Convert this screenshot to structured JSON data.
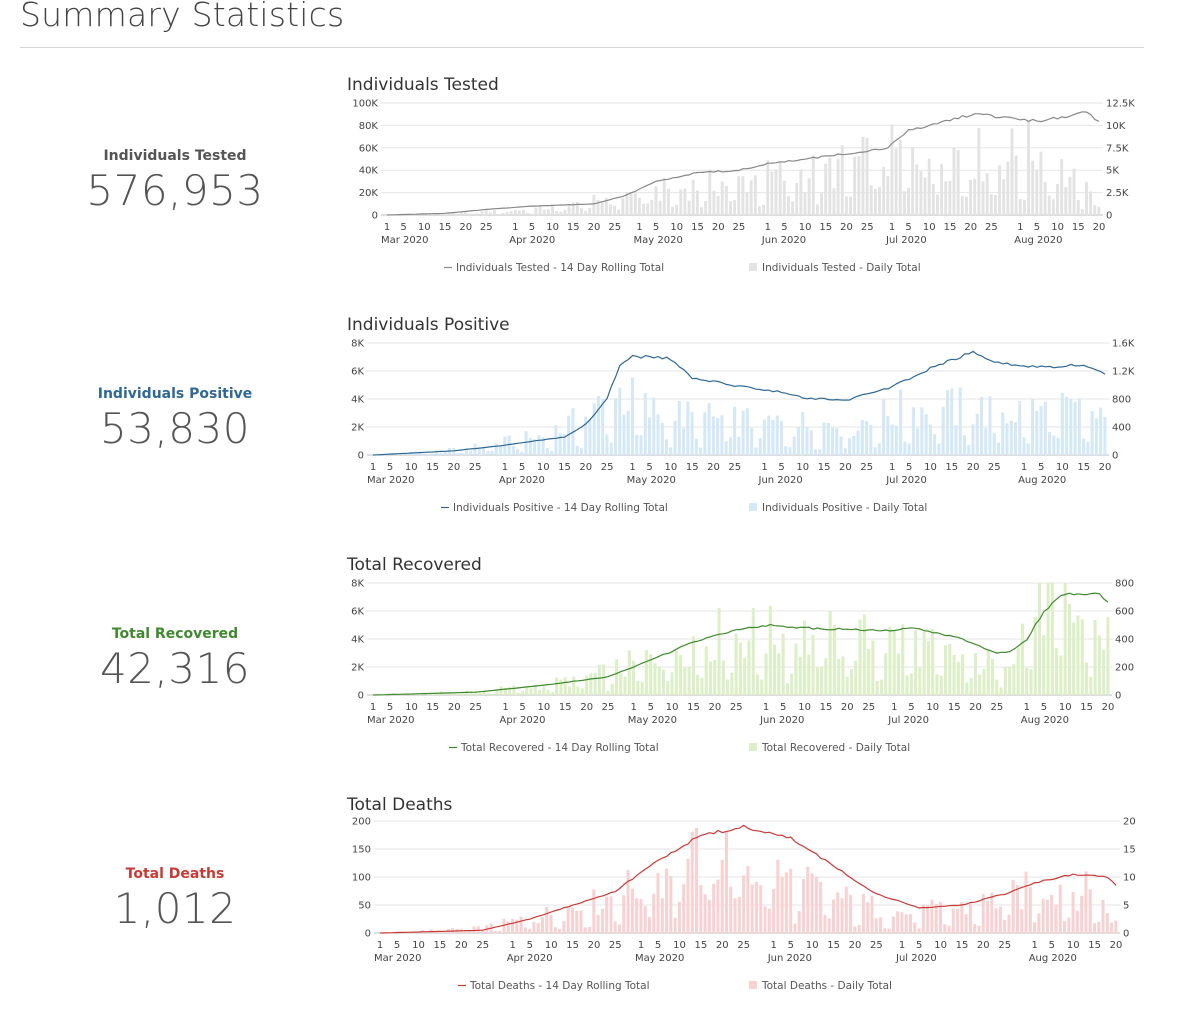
{
  "page": {
    "title": "Summary Statistics"
  },
  "stats": [
    {
      "key": "tested",
      "label": "Individuals Tested",
      "value": "576,953",
      "label_color": "#555555"
    },
    {
      "key": "positive",
      "label": "Individuals Positive",
      "value": "53,830",
      "label_color": "#2f6896"
    },
    {
      "key": "recovered",
      "label": "Total Recovered",
      "value": "42,316",
      "label_color": "#3f8a2e"
    },
    {
      "key": "deaths",
      "label": "Total Deaths",
      "value": "1,012",
      "label_color": "#c83a36"
    }
  ],
  "chart_data": [
    {
      "type": "bar+line",
      "title": "Individuals Tested",
      "x_start": "2020-03-01",
      "x_end": "2020-08-20",
      "left_axis": {
        "ticks": [
          "0",
          "20K",
          "40K",
          "60K",
          "80K",
          "100K"
        ],
        "values": [
          0,
          20000,
          40000,
          60000,
          80000,
          100000
        ]
      },
      "right_axis": {
        "ticks": [
          "0",
          "2.5K",
          "5K",
          "7.5K",
          "10K",
          "12.5K"
        ],
        "values": [
          0,
          2500,
          5000,
          7500,
          10000,
          12500
        ]
      },
      "x_day_labels": [
        "1",
        "5",
        "10",
        "15",
        "20",
        "25",
        "1",
        "5",
        "10",
        "15",
        "20",
        "25",
        "1",
        "5",
        "10",
        "15",
        "20",
        "25",
        "1",
        "5",
        "10",
        "15",
        "20",
        "25",
        "1",
        "5",
        "10",
        "15",
        "20",
        "25",
        "1",
        "5",
        "10",
        "15",
        "20"
      ],
      "x_month_labels": [
        "Mar 2020",
        "Apr 2020",
        "May 2020",
        "Jun 2020",
        "Jul 2020",
        "Aug 2020"
      ],
      "legend": [
        "Individuals Tested - 14 Day Rolling Total",
        "Individuals Tested - Daily Total"
      ],
      "colors": {
        "line": "#888888",
        "bar": "#e3e3e3"
      },
      "line_series": {
        "name": "Individuals Tested - 14 Day Rolling Total",
        "points": [
          [
            "2020-03-01",
            0
          ],
          [
            "2020-03-15",
            1500
          ],
          [
            "2020-03-25",
            5000
          ],
          [
            "2020-04-05",
            8000
          ],
          [
            "2020-04-20",
            10000
          ],
          [
            "2020-04-28",
            18000
          ],
          [
            "2020-05-05",
            30000
          ],
          [
            "2020-05-15",
            38000
          ],
          [
            "2020-05-25",
            40000
          ],
          [
            "2020-06-01",
            46000
          ],
          [
            "2020-06-10",
            50000
          ],
          [
            "2020-06-20",
            55000
          ],
          [
            "2020-06-30",
            60000
          ],
          [
            "2020-07-05",
            76000
          ],
          [
            "2020-07-12",
            82000
          ],
          [
            "2020-07-20",
            90000
          ],
          [
            "2020-07-28",
            88000
          ],
          [
            "2020-08-05",
            84000
          ],
          [
            "2020-08-12",
            88000
          ],
          [
            "2020-08-17",
            92000
          ],
          [
            "2020-08-20",
            83000
          ]
        ]
      },
      "bar_series": {
        "name": "Individuals Tested - Daily Total",
        "points": [
          [
            "2020-03-01",
            0
          ],
          [
            "2020-03-20",
            300
          ],
          [
            "2020-04-01",
            600
          ],
          [
            "2020-04-15",
            1200
          ],
          [
            "2020-04-25",
            2400
          ],
          [
            "2020-05-05",
            3000
          ],
          [
            "2020-05-20",
            4000
          ],
          [
            "2020-06-01",
            4800
          ],
          [
            "2020-06-15",
            5600
          ],
          [
            "2020-07-01",
            7600
          ],
          [
            "2020-07-15",
            8200
          ],
          [
            "2020-07-25",
            7200
          ],
          [
            "2020-08-05",
            8200
          ],
          [
            "2020-08-20",
            1500
          ]
        ]
      }
    },
    {
      "type": "bar+line",
      "title": "Individuals Positive",
      "x_start": "2020-03-01",
      "x_end": "2020-08-20",
      "left_axis": {
        "ticks": [
          "0",
          "2K",
          "4K",
          "6K",
          "8K"
        ],
        "values": [
          0,
          2000,
          4000,
          6000,
          8000
        ]
      },
      "right_axis": {
        "ticks": [
          "0",
          "400",
          "800",
          "1.2K",
          "1.6K"
        ],
        "values": [
          0,
          400,
          800,
          1200,
          1600
        ]
      },
      "x_day_labels": [
        "1",
        "5",
        "10",
        "15",
        "20",
        "25",
        "1",
        "5",
        "10",
        "15",
        "20",
        "25",
        "1",
        "5",
        "10",
        "15",
        "20",
        "25",
        "1",
        "5",
        "10",
        "15",
        "20",
        "25",
        "1",
        "5",
        "10",
        "15",
        "20",
        "25",
        "1",
        "5",
        "10",
        "15",
        "20"
      ],
      "x_month_labels": [
        "Mar 2020",
        "Apr 2020",
        "May 2020",
        "Jun 2020",
        "Jul 2020",
        "Aug 2020"
      ],
      "legend": [
        "Individuals Positive - 14 Day Rolling Total",
        "Individuals Positive - Daily Total"
      ],
      "colors": {
        "line": "#2f6896",
        "bar": "#d4e8f7"
      },
      "line_series": {
        "name": "Individuals Positive - 14 Day Rolling Total",
        "points": [
          [
            "2020-03-01",
            0
          ],
          [
            "2020-03-20",
            300
          ],
          [
            "2020-04-01",
            700
          ],
          [
            "2020-04-15",
            1300
          ],
          [
            "2020-04-20",
            2200
          ],
          [
            "2020-04-25",
            4000
          ],
          [
            "2020-04-28",
            6500
          ],
          [
            "2020-05-01",
            7100
          ],
          [
            "2020-05-10",
            6900
          ],
          [
            "2020-05-15",
            5500
          ],
          [
            "2020-05-25",
            5000
          ],
          [
            "2020-06-05",
            4500
          ],
          [
            "2020-06-10",
            4100
          ],
          [
            "2020-06-20",
            3900
          ],
          [
            "2020-07-01",
            4900
          ],
          [
            "2020-07-10",
            6200
          ],
          [
            "2020-07-20",
            7400
          ],
          [
            "2020-07-25",
            6600
          ],
          [
            "2020-08-05",
            6300
          ],
          [
            "2020-08-15",
            6500
          ],
          [
            "2020-08-20",
            5800
          ]
        ]
      },
      "bar_series": {
        "name": "Individuals Positive - Daily Total",
        "points": [
          [
            "2020-03-01",
            0
          ],
          [
            "2020-03-20",
            80
          ],
          [
            "2020-04-10",
            300
          ],
          [
            "2020-04-20",
            600
          ],
          [
            "2020-04-28",
            1000
          ],
          [
            "2020-05-05",
            700
          ],
          [
            "2020-05-15",
            600
          ],
          [
            "2020-05-25",
            550
          ],
          [
            "2020-06-05",
            500
          ],
          [
            "2020-06-15",
            500
          ],
          [
            "2020-06-25",
            550
          ],
          [
            "2020-07-05",
            750
          ],
          [
            "2020-07-15",
            750
          ],
          [
            "2020-07-25",
            700
          ],
          [
            "2020-08-05",
            700
          ],
          [
            "2020-08-15",
            700
          ],
          [
            "2020-08-20",
            500
          ]
        ]
      }
    },
    {
      "type": "bar+line",
      "title": "Total Recovered",
      "x_start": "2020-03-01",
      "x_end": "2020-08-20",
      "left_axis": {
        "ticks": [
          "0",
          "2K",
          "4K",
          "6K",
          "8K"
        ],
        "values": [
          0,
          2000,
          4000,
          6000,
          8000
        ]
      },
      "right_axis": {
        "ticks": [
          "0",
          "200",
          "400",
          "600",
          "800"
        ],
        "values": [
          0,
          200,
          400,
          600,
          800
        ]
      },
      "x_day_labels": [
        "1",
        "5",
        "10",
        "15",
        "20",
        "25",
        "1",
        "5",
        "10",
        "15",
        "20",
        "25",
        "1",
        "5",
        "10",
        "15",
        "20",
        "25",
        "1",
        "5",
        "10",
        "15",
        "20",
        "25",
        "1",
        "5",
        "10",
        "15",
        "20",
        "25",
        "1",
        "5",
        "10",
        "15",
        "20"
      ],
      "x_month_labels": [
        "Mar 2020",
        "Apr 2020",
        "May 2020",
        "Jun 2020",
        "Jul 2020",
        "Aug 2020"
      ],
      "legend": [
        "Total Recovered - 14 Day Rolling Total",
        "Total Recovered - Daily Total"
      ],
      "colors": {
        "line": "#3f8a2e",
        "bar": "#dcefc6"
      },
      "line_series": {
        "name": "Total Recovered - 14 Day Rolling Total",
        "points": [
          [
            "2020-03-01",
            0
          ],
          [
            "2020-03-25",
            200
          ],
          [
            "2020-04-10",
            700
          ],
          [
            "2020-04-25",
            1300
          ],
          [
            "2020-05-05",
            2500
          ],
          [
            "2020-05-15",
            3800
          ],
          [
            "2020-05-25",
            4700
          ],
          [
            "2020-06-01",
            5000
          ],
          [
            "2020-06-10",
            4800
          ],
          [
            "2020-06-20",
            4700
          ],
          [
            "2020-07-01",
            4600
          ],
          [
            "2020-07-05",
            4800
          ],
          [
            "2020-07-15",
            4200
          ],
          [
            "2020-07-25",
            3000
          ],
          [
            "2020-07-28",
            3100
          ],
          [
            "2020-08-01",
            4000
          ],
          [
            "2020-08-05",
            6000
          ],
          [
            "2020-08-10",
            7300
          ],
          [
            "2020-08-18",
            7200
          ],
          [
            "2020-08-20",
            6600
          ]
        ]
      },
      "bar_series": {
        "name": "Total Recovered - Daily Total",
        "points": [
          [
            "2020-03-01",
            0
          ],
          [
            "2020-03-25",
            30
          ],
          [
            "2020-04-10",
            80
          ],
          [
            "2020-04-25",
            180
          ],
          [
            "2020-05-05",
            300
          ],
          [
            "2020-05-15",
            450
          ],
          [
            "2020-05-25",
            500
          ],
          [
            "2020-06-05",
            480
          ],
          [
            "2020-06-15",
            460
          ],
          [
            "2020-06-25",
            450
          ],
          [
            "2020-07-05",
            440
          ],
          [
            "2020-07-15",
            300
          ],
          [
            "2020-07-25",
            250
          ],
          [
            "2020-08-01",
            600
          ],
          [
            "2020-08-05",
            780
          ],
          [
            "2020-08-15",
            600
          ],
          [
            "2020-08-20",
            480
          ]
        ]
      }
    },
    {
      "type": "bar+line",
      "title": "Total Deaths",
      "x_start": "2020-03-01",
      "x_end": "2020-08-20",
      "left_axis": {
        "ticks": [
          "0",
          "50",
          "100",
          "150",
          "200"
        ],
        "values": [
          0,
          50,
          100,
          150,
          200
        ]
      },
      "right_axis": {
        "ticks": [
          "0",
          "5",
          "10",
          "15",
          "20"
        ],
        "values": [
          0,
          5,
          10,
          15,
          20
        ]
      },
      "x_day_labels": [
        "1",
        "5",
        "10",
        "15",
        "20",
        "25",
        "1",
        "5",
        "10",
        "15",
        "20",
        "25",
        "1",
        "5",
        "10",
        "15",
        "20",
        "25",
        "1",
        "5",
        "10",
        "15",
        "20",
        "25",
        "1",
        "5",
        "10",
        "15",
        "20",
        "25",
        "1",
        "5",
        "10",
        "15",
        "20"
      ],
      "x_month_labels": [
        "Mar 2020",
        "Apr 2020",
        "May 2020",
        "Jun 2020",
        "Jul 2020",
        "Aug 2020"
      ],
      "legend": [
        "Total Deaths - 14 Day Rolling Total",
        "Total Deaths - Daily Total"
      ],
      "colors": {
        "line": "#c83a36",
        "bar": "#f8d2d2"
      },
      "line_series": {
        "name": "Total Deaths - 14 Day Rolling Total",
        "points": [
          [
            "2020-03-01",
            0
          ],
          [
            "2020-03-25",
            5
          ],
          [
            "2020-04-05",
            25
          ],
          [
            "2020-04-15",
            50
          ],
          [
            "2020-04-25",
            75
          ],
          [
            "2020-05-05",
            130
          ],
          [
            "2020-05-15",
            175
          ],
          [
            "2020-05-25",
            190
          ],
          [
            "2020-06-05",
            170
          ],
          [
            "2020-06-15",
            120
          ],
          [
            "2020-06-25",
            70
          ],
          [
            "2020-07-05",
            45
          ],
          [
            "2020-07-15",
            50
          ],
          [
            "2020-07-25",
            70
          ],
          [
            "2020-08-01",
            90
          ],
          [
            "2020-08-10",
            105
          ],
          [
            "2020-08-18",
            100
          ],
          [
            "2020-08-20",
            85
          ]
        ]
      },
      "bar_series": {
        "name": "Total Deaths - Daily Total",
        "points": [
          [
            "2020-03-01",
            0
          ],
          [
            "2020-03-25",
            1
          ],
          [
            "2020-04-05",
            3
          ],
          [
            "2020-04-20",
            6
          ],
          [
            "2020-05-01",
            10
          ],
          [
            "2020-05-10",
            14
          ],
          [
            "2020-05-20",
            16
          ],
          [
            "2020-05-28",
            13
          ],
          [
            "2020-06-10",
            9
          ],
          [
            "2020-06-20",
            6
          ],
          [
            "2020-07-01",
            4
          ],
          [
            "2020-07-15",
            5
          ],
          [
            "2020-07-25",
            7
          ],
          [
            "2020-08-05",
            10
          ],
          [
            "2020-08-15",
            8
          ],
          [
            "2020-08-20",
            2
          ]
        ]
      }
    }
  ]
}
